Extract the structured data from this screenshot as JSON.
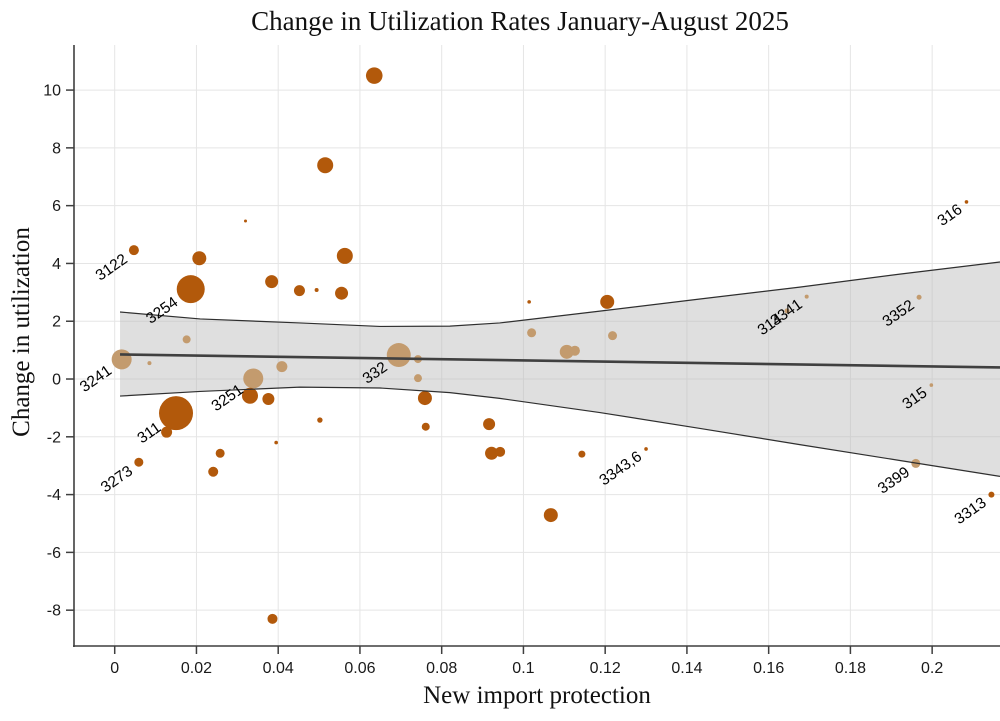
{
  "chart_data": {
    "type": "scatter",
    "title": "Change in Utilization Rates January-August 2025",
    "xlabel": "New import protection",
    "ylabel": "Change in utilization",
    "xlim": [
      -0.00996,
      0.2166
    ],
    "ylim": [
      -9.24,
      11.56
    ],
    "grid": true,
    "x_ticks": [
      {
        "v": 0,
        "label": "0"
      },
      {
        "v": 0.02,
        "label": "0.02"
      },
      {
        "v": 0.04,
        "label": "0.04"
      },
      {
        "v": 0.06,
        "label": "0.06"
      },
      {
        "v": 0.08,
        "label": "0.08"
      },
      {
        "v": 0.1,
        "label": "0.1"
      },
      {
        "v": 0.12,
        "label": "0.12"
      },
      {
        "v": 0.14,
        "label": "0.14"
      },
      {
        "v": 0.16,
        "label": "0.16"
      },
      {
        "v": 0.18,
        "label": "0.18"
      },
      {
        "v": 0.2,
        "label": "0.2"
      }
    ],
    "y_ticks": [
      {
        "v": 10,
        "label": "10"
      },
      {
        "v": 8,
        "label": "8"
      },
      {
        "v": 6,
        "label": "6"
      },
      {
        "v": 4,
        "label": "4"
      },
      {
        "v": 2,
        "label": "2"
      },
      {
        "v": 0,
        "label": "0"
      },
      {
        "v": -2,
        "label": "-2"
      },
      {
        "v": -4,
        "label": "-4"
      },
      {
        "v": -6,
        "label": "-6"
      },
      {
        "v": -8,
        "label": "-8"
      }
    ],
    "points": [
      {
        "x": 0.0635,
        "y": 10.5,
        "r": 8.3,
        "shade": "dark"
      },
      {
        "x": 0.0515,
        "y": 7.4,
        "r": 8,
        "shade": "dark"
      },
      {
        "x": 0.0047,
        "y": 4.46,
        "r": 5,
        "shade": "dark",
        "label": "3122"
      },
      {
        "x": 0.0207,
        "y": 4.18,
        "r": 7,
        "shade": "dark"
      },
      {
        "x": 0.0563,
        "y": 4.26,
        "r": 8,
        "shade": "dark"
      },
      {
        "x": 0.032,
        "y": 5.47,
        "r": 1.5,
        "shade": "dark"
      },
      {
        "x": 0.0186,
        "y": 3.11,
        "r": 14,
        "shade": "dark",
        "label": "3254"
      },
      {
        "x": 0.0384,
        "y": 3.37,
        "r": 6.5,
        "shade": "dark"
      },
      {
        "x": 0.0452,
        "y": 3.06,
        "r": 5.5,
        "shade": "dark"
      },
      {
        "x": 0.0494,
        "y": 3.08,
        "r": 2,
        "shade": "dark"
      },
      {
        "x": 0.0555,
        "y": 2.97,
        "r": 6.5,
        "shade": "dark"
      },
      {
        "x": 0.0176,
        "y": 1.37,
        "r": 4,
        "shade": "light"
      },
      {
        "x": 0.0017,
        "y": 0.68,
        "r": 10,
        "shade": "light",
        "label": "3241"
      },
      {
        "x": 0.0085,
        "y": 0.55,
        "r": 2,
        "shade": "light"
      },
      {
        "x": 0.0695,
        "y": 0.83,
        "r": 12,
        "shade": "light",
        "label": "332"
      },
      {
        "x": 0.0742,
        "y": 0.69,
        "r": 4,
        "shade": "light"
      },
      {
        "x": 0.0742,
        "y": 0.03,
        "r": 4,
        "shade": "light"
      },
      {
        "x": 0.0409,
        "y": 0.43,
        "r": 5.5,
        "shade": "light"
      },
      {
        "x": 0.0339,
        "y": 0.02,
        "r": 10,
        "shade": "light",
        "label": "3251"
      },
      {
        "x": 0.102,
        "y": 1.6,
        "r": 4.5,
        "shade": "light"
      },
      {
        "x": 0.1106,
        "y": 0.94,
        "r": 7,
        "shade": "light"
      },
      {
        "x": 0.1126,
        "y": 0.98,
        "r": 5,
        "shade": "light"
      },
      {
        "x": 0.1205,
        "y": 2.67,
        "r": 7,
        "shade": "dark"
      },
      {
        "x": 0.1014,
        "y": 2.67,
        "r": 1.8,
        "shade": "dark"
      },
      {
        "x": 0.1218,
        "y": 1.5,
        "r": 4.5,
        "shade": "light"
      },
      {
        "x": 0.1645,
        "y": 2.36,
        "r": 2.5,
        "shade": "light",
        "label": "314"
      },
      {
        "x": 0.1693,
        "y": 2.85,
        "r": 2,
        "shade": "light",
        "label": "3341"
      },
      {
        "x": 0.1968,
        "y": 2.83,
        "r": 2.5,
        "shade": "light",
        "label": "3352"
      },
      {
        "x": 0.2084,
        "y": 6.13,
        "r": 1.8,
        "shade": "dark",
        "label": "316"
      },
      {
        "x": 0.1998,
        "y": -0.21,
        "r": 1.8,
        "shade": "light",
        "label": "315"
      },
      {
        "x": 0.196,
        "y": -2.92,
        "r": 4.5,
        "shade": "light",
        "label": "3399"
      },
      {
        "x": 0.2145,
        "y": -4.0,
        "r": 3,
        "shade": "dark",
        "label": "3313"
      },
      {
        "x": 0.13,
        "y": -2.42,
        "r": 1.8,
        "shade": "dark",
        "label": "3343,6"
      },
      {
        "x": 0.1143,
        "y": -2.6,
        "r": 3.5,
        "shade": "dark"
      },
      {
        "x": 0.1067,
        "y": -4.71,
        "r": 7,
        "shade": "dark"
      },
      {
        "x": 0.0922,
        "y": -2.57,
        "r": 6.5,
        "shade": "dark"
      },
      {
        "x": 0.0943,
        "y": -2.52,
        "r": 5,
        "shade": "dark"
      },
      {
        "x": 0.0916,
        "y": -1.56,
        "r": 6,
        "shade": "dark"
      },
      {
        "x": 0.0761,
        "y": -1.65,
        "r": 4,
        "shade": "dark"
      },
      {
        "x": 0.0759,
        "y": -0.66,
        "r": 7,
        "shade": "dark"
      },
      {
        "x": 0.0502,
        "y": -1.42,
        "r": 2.7,
        "shade": "dark"
      },
      {
        "x": 0.0395,
        "y": -2.2,
        "r": 1.8,
        "shade": "dark"
      },
      {
        "x": 0.0386,
        "y": -8.3,
        "r": 5,
        "shade": "dark"
      },
      {
        "x": 0.0241,
        "y": -3.21,
        "r": 5,
        "shade": "dark"
      },
      {
        "x": 0.0258,
        "y": -2.57,
        "r": 4.5,
        "shade": "dark"
      },
      {
        "x": 0.0059,
        "y": -2.88,
        "r": 4.5,
        "shade": "dark",
        "label": "3273"
      },
      {
        "x": 0.0127,
        "y": -1.84,
        "r": 5.5,
        "shade": "dark"
      },
      {
        "x": 0.015,
        "y": -1.18,
        "r": 17,
        "shade": "dark",
        "label": "311"
      },
      {
        "x": 0.0331,
        "y": -0.58,
        "r": 8,
        "shade": "dark"
      },
      {
        "x": 0.0376,
        "y": -0.69,
        "r": 6,
        "shade": "dark"
      }
    ],
    "regression": {
      "x": [
        0.0013,
        0.2166
      ],
      "y": [
        0.85,
        0.4
      ]
    },
    "confidence_band": {
      "x": [
        0.0013,
        0.0209,
        0.0453,
        0.0649,
        0.082,
        0.0942,
        0.1187,
        0.1432,
        0.1676,
        0.1921,
        0.2166
      ],
      "upper": [
        2.32,
        2.08,
        1.94,
        1.82,
        1.83,
        1.94,
        2.35,
        2.77,
        3.18,
        3.63,
        4.05
      ],
      "lower": [
        -0.59,
        -0.43,
        -0.28,
        -0.31,
        -0.47,
        -0.67,
        -1.16,
        -1.71,
        -2.27,
        -2.82,
        -3.37
      ]
    },
    "colors": {
      "point_dark": "#b2590b",
      "point_light": "#c39b6e",
      "band_fill": "rgba(184,184,184,0.45)",
      "band_edge": "#2f2f2f",
      "regression_line": "#404040",
      "grid": "#e5e5e5",
      "axis": "#3f3f3f",
      "tick_label": "#1a1a1a",
      "point_label": "#000000"
    },
    "legend": null
  }
}
